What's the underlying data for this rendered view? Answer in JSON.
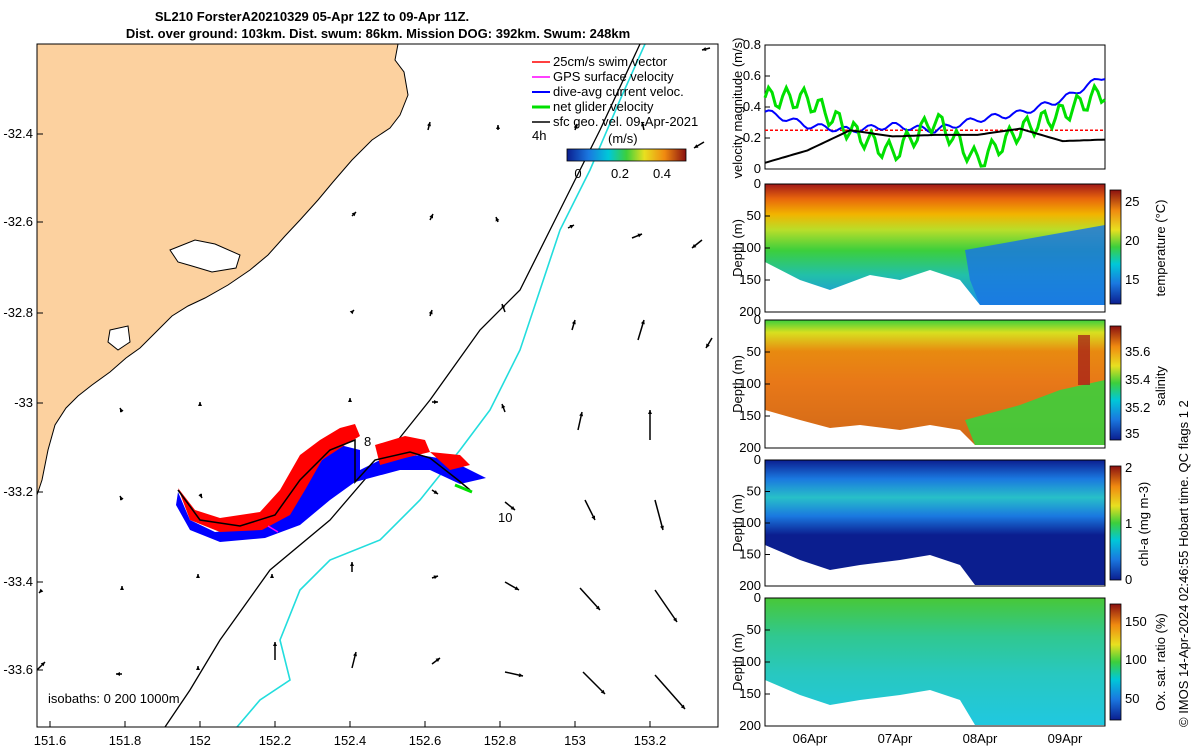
{
  "title": {
    "line1": "SL210 ForsterA20210329 05-Apr 12Z to 09-Apr 11Z.",
    "line2": "Dist. over ground: 103km. Dist. swum: 86km. Mission DOG: 392km. Swum: 248km"
  },
  "colors": {
    "land": "#fcd19f",
    "swim_vector": "#ff0000",
    "gps_velocity": "#ff00ff",
    "dive_avg": "#0000ff",
    "net_glider": "#00e000",
    "sfc_geo": "#000000",
    "isobath_200": "#000000",
    "isobath_1000": "#22dddd"
  },
  "map": {
    "legend": [
      {
        "label": "25cm/s swim vector",
        "color": "#ff0000"
      },
      {
        "label": "GPS surface velocity",
        "color": "#ff00ff"
      },
      {
        "label": "dive-avg current veloc.",
        "color": "#0000ff"
      },
      {
        "label": "net glider velocity",
        "color": "#00e000"
      },
      {
        "label": "sfc geo. vel. 09-Apr-2021",
        "color": "#000000"
      }
    ],
    "time_tick_label": "4h",
    "colorbar_title": "(m/s)",
    "colorbar_ticks": [
      "0",
      "0.2",
      "0.4"
    ],
    "isobaths_label": "isobaths: 0   200  1000m",
    "track_labels": [
      "8",
      "10"
    ],
    "x_ticks": [
      "151.6",
      "151.8",
      "152",
      "152.2",
      "152.4",
      "152.6",
      "152.8",
      "153",
      "153.2"
    ],
    "y_ticks": [
      "-32.4",
      "-32.6",
      "-32.8",
      "-33",
      "-33.2",
      "-33.4",
      "-33.6"
    ]
  },
  "chart_data": [
    {
      "type": "line",
      "ylabel": "velocity magnitude (m/s)",
      "ylim": [
        0,
        0.8
      ],
      "y_ticks": [
        "0",
        "0.2",
        "0.4",
        "0.6",
        "0.8"
      ],
      "x": [
        "05-Apr 12Z",
        "06-Apr 00Z",
        "06-Apr 12Z",
        "07-Apr 00Z",
        "07-Apr 12Z",
        "08-Apr 00Z",
        "08-Apr 12Z",
        "09-Apr 00Z",
        "09-Apr 11Z"
      ],
      "series": [
        {
          "color": "#ff0000",
          "values": [
            0.25,
            0.25,
            0.25,
            0.25,
            0.25,
            0.25,
            0.25,
            0.25,
            0.25
          ]
        },
        {
          "color": "#0000ff",
          "values": [
            0.37,
            0.28,
            0.25,
            0.28,
            0.25,
            0.32,
            0.36,
            0.45,
            0.6
          ]
        },
        {
          "color": "#00e000",
          "values": [
            0.46,
            0.45,
            0.25,
            0.1,
            0.32,
            0.05,
            0.25,
            0.36,
            0.5
          ]
        },
        {
          "color": "#000000",
          "values": [
            0.04,
            0.12,
            0.25,
            0.21,
            0.22,
            0.22,
            0.26,
            0.18,
            0.19
          ]
        }
      ]
    },
    {
      "type": "heatmap",
      "variable": "temperature (°C)",
      "ylabel": "Depth (m)",
      "ylim": [
        200,
        0
      ],
      "y_ticks": [
        "0",
        "50",
        "100",
        "150",
        "200"
      ],
      "colorbar_ticks": [
        "15",
        "20",
        "25"
      ],
      "clim": [
        12,
        27
      ]
    },
    {
      "type": "heatmap",
      "variable": "salinity",
      "ylabel": "Depth (m)",
      "ylim": [
        200,
        0
      ],
      "y_ticks": [
        "0",
        "50",
        "100",
        "150",
        "200"
      ],
      "colorbar_ticks": [
        "35",
        "35.2",
        "35.4",
        "35.6"
      ],
      "clim": [
        34.9,
        35.7
      ]
    },
    {
      "type": "heatmap",
      "variable": "chl-a (mg m-3)",
      "ylabel": "Depth (m)",
      "ylim": [
        200,
        0
      ],
      "y_ticks": [
        "0",
        "50",
        "100",
        "150",
        "200"
      ],
      "colorbar_ticks": [
        "0",
        "1",
        "2"
      ],
      "clim": [
        0,
        2
      ]
    },
    {
      "type": "heatmap",
      "variable": "Ox. sat. ratio (%)",
      "ylabel": "Depth (m)",
      "ylim": [
        200,
        0
      ],
      "y_ticks": [
        "0",
        "50",
        "100",
        "150",
        "200"
      ],
      "colorbar_ticks": [
        "50",
        "100",
        "150"
      ],
      "clim": [
        25,
        175
      ]
    }
  ],
  "time_axis": {
    "ticks": [
      "06Apr",
      "07Apr",
      "08Apr",
      "09Apr"
    ]
  },
  "credit": "© IMOS 14-Apr-2024 02:46:55 Hobart time. QC flags 1  2"
}
